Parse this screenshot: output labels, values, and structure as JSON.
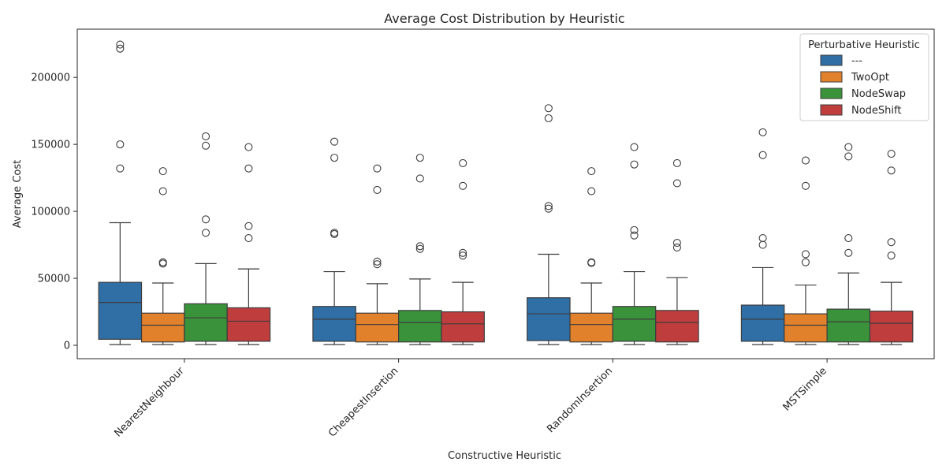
{
  "chart_data": {
    "type": "boxplot",
    "title": "Average Cost Distribution by Heuristic",
    "xlabel": "Constructive Heuristic",
    "ylabel": "Average Cost",
    "categories": [
      "NearestNeighbour",
      "CheapestInsertion",
      "RandomInsertion",
      "MSTSimple"
    ],
    "ylim": [
      -10000,
      236000
    ],
    "yticks": [
      0,
      50000,
      100000,
      150000,
      200000
    ],
    "grid": false,
    "legend": {
      "title": "Perturbative Heuristic",
      "position": "top-right"
    },
    "series": [
      {
        "name": "---",
        "color": "#2f6fa6",
        "boxes": [
          {
            "whislo": 500,
            "q1": 4500,
            "med": 32000,
            "q3": 47000,
            "whishi": 91500,
            "fliers": [
              132000,
              150000,
              221500,
              224500
            ]
          },
          {
            "whislo": 500,
            "q1": 3000,
            "med": 19500,
            "q3": 29000,
            "whishi": 55000,
            "fliers": [
              83000,
              84000,
              140000,
              152000
            ]
          },
          {
            "whislo": 500,
            "q1": 3500,
            "med": 23500,
            "q3": 35500,
            "whishi": 68000,
            "fliers": [
              102000,
              104000,
              169500,
              177000
            ]
          },
          {
            "whislo": 500,
            "q1": 3000,
            "med": 19500,
            "q3": 30000,
            "whishi": 58000,
            "fliers": [
              75000,
              80000,
              142000,
              159000
            ]
          }
        ]
      },
      {
        "name": "TwoOpt",
        "color": "#e1812c",
        "boxes": [
          {
            "whislo": 500,
            "q1": 2500,
            "med": 15000,
            "q3": 24000,
            "whishi": 46500,
            "fliers": [
              61000,
              62000,
              115000,
              130000
            ]
          },
          {
            "whislo": 500,
            "q1": 2500,
            "med": 15500,
            "q3": 24000,
            "whishi": 46000,
            "fliers": [
              60500,
              62500,
              116000,
              132000
            ]
          },
          {
            "whislo": 500,
            "q1": 2500,
            "med": 15500,
            "q3": 24000,
            "whishi": 46500,
            "fliers": [
              61500,
              62000,
              115000,
              130000
            ]
          },
          {
            "whislo": 500,
            "q1": 2500,
            "med": 15000,
            "q3": 23500,
            "whishi": 45000,
            "fliers": [
              62000,
              68000,
              119000,
              138000
            ]
          }
        ]
      },
      {
        "name": "NodeSwap",
        "color": "#3a923a",
        "boxes": [
          {
            "whislo": 500,
            "q1": 3000,
            "med": 20500,
            "q3": 31000,
            "whishi": 61000,
            "fliers": [
              84000,
              94000,
              149000,
              156000
            ]
          },
          {
            "whislo": 500,
            "q1": 2500,
            "med": 17000,
            "q3": 26000,
            "whishi": 49500,
            "fliers": [
              72000,
              74000,
              124500,
              140000
            ]
          },
          {
            "whislo": 500,
            "q1": 3000,
            "med": 19500,
            "q3": 29000,
            "whishi": 55000,
            "fliers": [
              82000,
              86000,
              135000,
              148000
            ]
          },
          {
            "whislo": 500,
            "q1": 2500,
            "med": 17500,
            "q3": 27000,
            "whishi": 54000,
            "fliers": [
              69000,
              80000,
              141000,
              148000
            ]
          }
        ]
      },
      {
        "name": "NodeShift",
        "color": "#c03d3e",
        "boxes": [
          {
            "whislo": 500,
            "q1": 3000,
            "med": 18000,
            "q3": 28000,
            "whishi": 57000,
            "fliers": [
              80000,
              89000,
              132000,
              148000
            ]
          },
          {
            "whislo": 500,
            "q1": 2500,
            "med": 16000,
            "q3": 25000,
            "whishi": 47000,
            "fliers": [
              67000,
              69000,
              119000,
              136000
            ]
          },
          {
            "whislo": 500,
            "q1": 2500,
            "med": 17000,
            "q3": 26000,
            "whishi": 50500,
            "fliers": [
              73000,
              76500,
              121000,
              136000
            ]
          },
          {
            "whislo": 500,
            "q1": 2500,
            "med": 16500,
            "q3": 25500,
            "whishi": 47000,
            "fliers": [
              67000,
              77000,
              130500,
              143000
            ]
          }
        ]
      }
    ]
  }
}
